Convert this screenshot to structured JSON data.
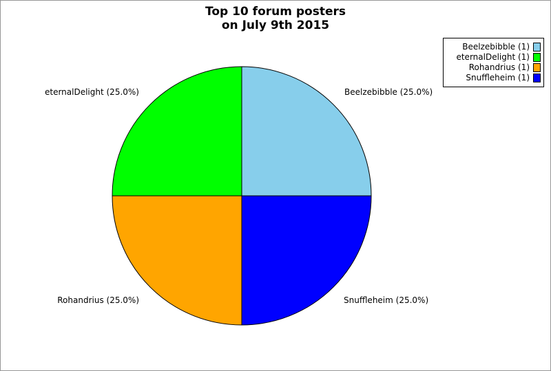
{
  "chart_data": {
    "type": "pie",
    "title": "Top 10 forum posters",
    "subtitle": "on July 9th 2015",
    "start_angle_deg": 0,
    "direction": "counterclockwise",
    "legend_position": "upper right",
    "grid": false,
    "slices": [
      {
        "name": "Beelzebibble",
        "value": 1,
        "percent": 25.0,
        "color": "#87CEEB",
        "callout": "Beelzebibble (25.0%)",
        "legend_label": "Beelzebibble (1)"
      },
      {
        "name": "eternalDelight",
        "value": 1,
        "percent": 25.0,
        "color": "#00FF00",
        "callout": "eternalDelight (25.0%)",
        "legend_label": "eternalDelight (1)"
      },
      {
        "name": "Rohandrius",
        "value": 1,
        "percent": 25.0,
        "color": "#FFA500",
        "callout": "Rohandrius (25.0%)",
        "legend_label": "Rohandrius (1)"
      },
      {
        "name": "Snuffleheim",
        "value": 1,
        "percent": 25.0,
        "color": "#0000FF",
        "callout": "Snuffleheim (25.0%)",
        "legend_label": "Snuffleheim (1)"
      }
    ]
  }
}
